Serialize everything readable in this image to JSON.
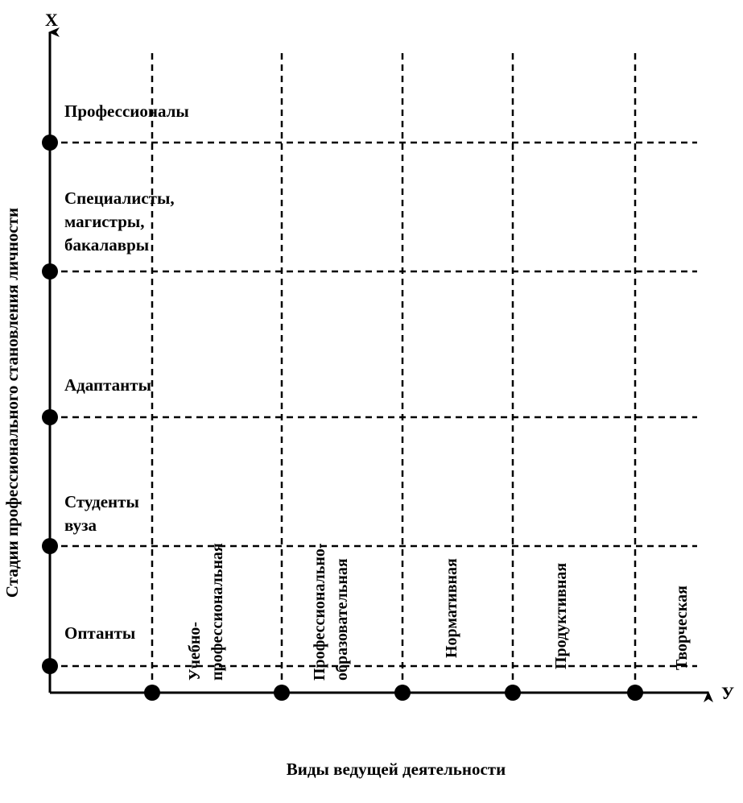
{
  "axes": {
    "x_axis_letter": "X",
    "y_axis_letter": "У",
    "vertical_title": "Стадии профессионального становления личности",
    "horizontal_title": "Виды ведущей деятельности"
  },
  "stages": [
    {
      "lines": [
        "Оптанты"
      ]
    },
    {
      "lines": [
        "Студенты",
        "вуза"
      ]
    },
    {
      "lines": [
        "Адаптанты"
      ]
    },
    {
      "lines": [
        "Специалисты,",
        "магистры,",
        "бакалавры"
      ]
    },
    {
      "lines": [
        "Профессионалы"
      ]
    }
  ],
  "activities": [
    {
      "lines": [
        "Учебно-",
        "профессиональная"
      ]
    },
    {
      "lines": [
        "Профессионально-",
        "образовательная"
      ]
    },
    {
      "lines": [
        "Нормативная"
      ]
    },
    {
      "lines": [
        "Продуктивная"
      ]
    },
    {
      "lines": [
        "Творческая"
      ]
    }
  ],
  "colors": {
    "line": "#000000",
    "background": "#ffffff"
  }
}
